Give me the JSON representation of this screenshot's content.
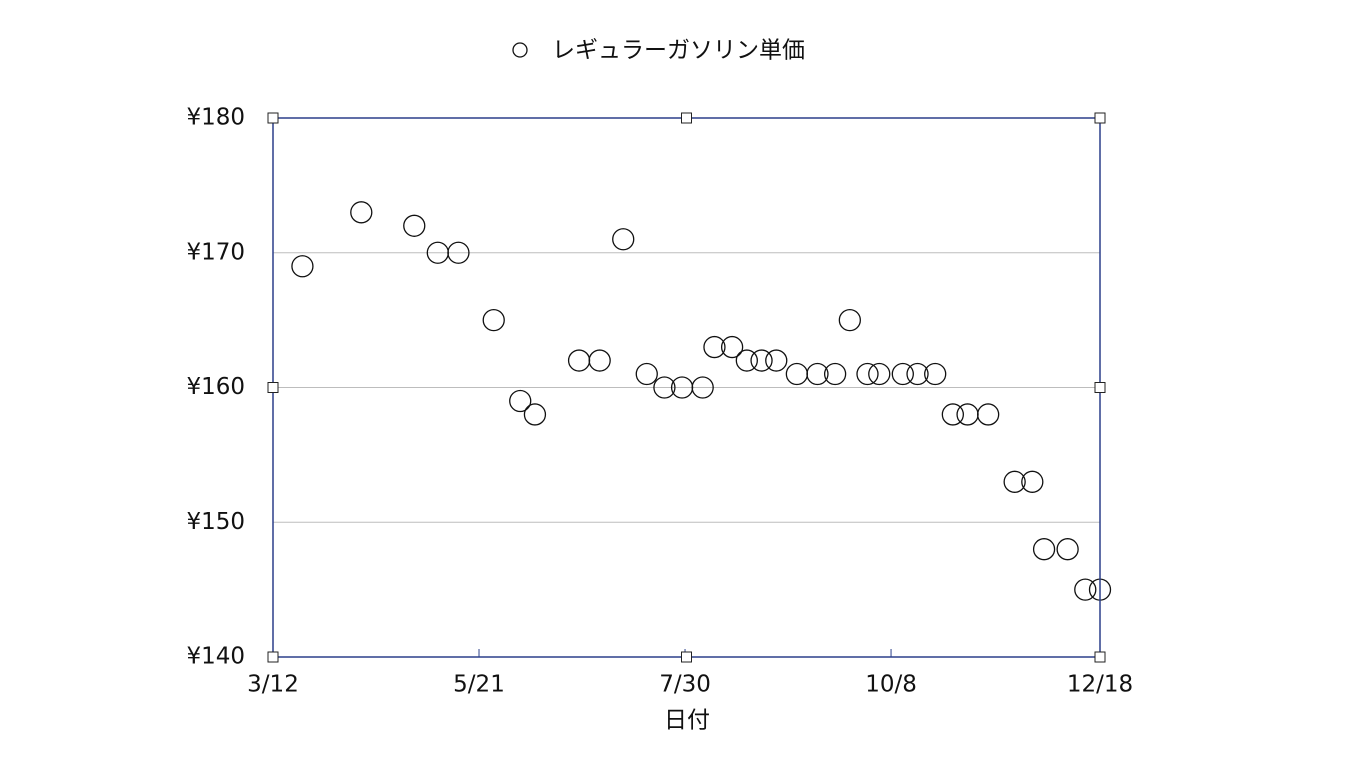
{
  "chart_data": {
    "type": "scatter",
    "x_label": "日付",
    "series": [
      {
        "name": "レギュラーガソリン単価",
        "color": "#111111",
        "x": [
          "3/22",
          "4/11",
          "4/29",
          "5/7",
          "5/14",
          "5/26",
          "6/4",
          "6/9",
          "6/24",
          "7/1",
          "7/9",
          "7/17",
          "7/23",
          "7/29",
          "8/5",
          "8/9",
          "8/15",
          "8/20",
          "8/25",
          "8/30",
          "9/6",
          "9/13",
          "9/19",
          "9/24",
          "9/30",
          "10/4",
          "10/12",
          "10/17",
          "10/23",
          "10/29",
          "11/3",
          "11/10",
          "11/19",
          "11/25",
          "11/29",
          "12/7",
          "12/13",
          "12/18"
        ],
        "values": [
          169,
          173,
          172,
          170,
          170,
          165,
          159,
          158,
          162,
          162,
          171,
          161,
          160,
          160,
          160,
          163,
          163,
          162,
          162,
          162,
          161,
          161,
          161,
          165,
          161,
          161,
          161,
          161,
          161,
          158,
          158,
          158,
          153,
          153,
          148,
          148,
          145,
          145
        ]
      }
    ],
    "xlim": [
      "3/12",
      "12/18"
    ],
    "xticks": [
      "3/12",
      "5/21",
      "7/30",
      "10/8",
      "12/18"
    ],
    "ylim": [
      140,
      180
    ],
    "yticks": [
      {
        "value": 140,
        "label": "¥140"
      },
      {
        "value": 150,
        "label": "¥150"
      },
      {
        "value": 160,
        "label": "¥160"
      },
      {
        "value": 170,
        "label": "¥170"
      },
      {
        "value": 180,
        "label": "¥180"
      }
    ],
    "grid": true,
    "legend": "top",
    "axis_color": "#2b3f8a"
  }
}
